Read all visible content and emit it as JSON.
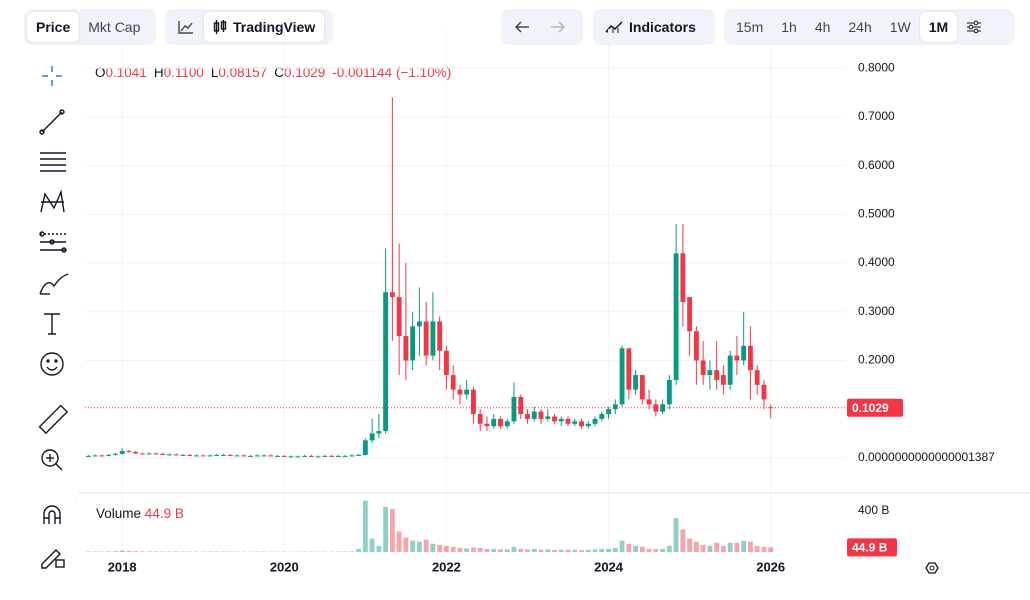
{
  "toolbar": {
    "view_tabs": [
      "Price",
      "Mkt Cap"
    ],
    "chart_style": "TradingView",
    "indicators": "Indicators",
    "intervals": [
      "15m",
      "1h",
      "4h",
      "24h",
      "1W",
      "1M"
    ],
    "active_interval": "1M"
  },
  "legend": {
    "items": [
      {
        "key": "O",
        "value": "0.1041"
      },
      {
        "key": "H",
        "value": "0.1100"
      },
      {
        "key": "L",
        "value": "0.08157"
      },
      {
        "key": "C",
        "value": "0.1029"
      }
    ],
    "change": "-0.001144",
    "change_pct": "(−1.10%)"
  },
  "chart_data": {
    "type": "candlestick",
    "open": [
      0.003,
      0.004,
      0.005,
      0.004,
      0.006,
      0.008,
      0.014,
      0.012,
      0.009,
      0.008,
      0.009,
      0.008,
      0.007,
      0.007,
      0.006,
      0.006,
      0.005,
      0.005,
      0.004,
      0.005,
      0.006,
      0.006,
      0.005,
      0.005,
      0.004,
      0.004,
      0.005,
      0.005,
      0.004,
      0.004,
      0.003,
      0.003,
      0.003,
      0.004,
      0.003,
      0.003,
      0.004,
      0.003,
      0.004,
      0.004,
      0.005,
      0.006,
      0.036,
      0.05,
      0.055,
      0.34,
      0.33,
      0.25,
      0.2,
      0.27,
      0.28,
      0.21,
      0.28,
      0.22,
      0.17,
      0.14,
      0.13,
      0.14,
      0.09,
      0.07,
      0.065,
      0.08,
      0.065,
      0.075,
      0.125,
      0.09,
      0.08,
      0.095,
      0.08,
      0.085,
      0.075,
      0.08,
      0.07,
      0.075,
      0.065,
      0.07,
      0.08,
      0.09,
      0.1,
      0.11,
      0.225,
      0.14,
      0.17,
      0.12,
      0.11,
      0.095,
      0.11,
      0.16,
      0.42,
      0.33,
      0.26,
      0.2,
      0.17,
      0.18,
      0.17,
      0.15,
      0.21,
      0.2,
      0.23,
      0.18,
      0.15,
      0.1041
    ],
    "high": [
      0.006,
      0.007,
      0.007,
      0.008,
      0.01,
      0.02,
      0.016,
      0.014,
      0.011,
      0.011,
      0.011,
      0.01,
      0.009,
      0.009,
      0.008,
      0.008,
      0.007,
      0.007,
      0.007,
      0.008,
      0.008,
      0.008,
      0.007,
      0.007,
      0.006,
      0.007,
      0.007,
      0.007,
      0.006,
      0.006,
      0.005,
      0.005,
      0.006,
      0.006,
      0.005,
      0.006,
      0.006,
      0.006,
      0.006,
      0.007,
      0.008,
      0.04,
      0.08,
      0.09,
      0.43,
      0.74,
      0.44,
      0.4,
      0.3,
      0.35,
      0.32,
      0.34,
      0.29,
      0.23,
      0.19,
      0.15,
      0.16,
      0.145,
      0.1,
      0.085,
      0.09,
      0.085,
      0.08,
      0.155,
      0.13,
      0.1,
      0.105,
      0.1,
      0.1,
      0.09,
      0.085,
      0.085,
      0.08,
      0.08,
      0.075,
      0.085,
      0.095,
      0.105,
      0.12,
      0.23,
      0.22,
      0.18,
      0.165,
      0.14,
      0.12,
      0.12,
      0.17,
      0.48,
      0.48,
      0.33,
      0.27,
      0.24,
      0.2,
      0.24,
      0.19,
      0.22,
      0.25,
      0.3,
      0.27,
      0.19,
      0.16,
      0.11
    ],
    "low": [
      0.002,
      0.003,
      0.003,
      0.003,
      0.005,
      0.007,
      0.011,
      0.008,
      0.007,
      0.007,
      0.007,
      0.006,
      0.006,
      0.005,
      0.005,
      0.004,
      0.004,
      0.003,
      0.003,
      0.004,
      0.005,
      0.004,
      0.004,
      0.003,
      0.003,
      0.003,
      0.004,
      0.003,
      0.003,
      0.002,
      0.002,
      0.002,
      0.002,
      0.002,
      0.002,
      0.002,
      0.002,
      0.002,
      0.003,
      0.003,
      0.004,
      0.005,
      0.03,
      0.04,
      0.05,
      0.24,
      0.17,
      0.16,
      0.18,
      0.21,
      0.19,
      0.2,
      0.18,
      0.14,
      0.12,
      0.11,
      0.12,
      0.07,
      0.055,
      0.055,
      0.06,
      0.06,
      0.06,
      0.07,
      0.08,
      0.07,
      0.075,
      0.07,
      0.075,
      0.07,
      0.065,
      0.065,
      0.065,
      0.06,
      0.06,
      0.065,
      0.075,
      0.08,
      0.09,
      0.105,
      0.12,
      0.13,
      0.11,
      0.1,
      0.085,
      0.09,
      0.1,
      0.15,
      0.27,
      0.21,
      0.15,
      0.15,
      0.14,
      0.14,
      0.13,
      0.14,
      0.17,
      0.19,
      0.12,
      0.13,
      0.1,
      0.08157
    ],
    "close": [
      0.004,
      0.005,
      0.004,
      0.006,
      0.008,
      0.014,
      0.012,
      0.009,
      0.008,
      0.009,
      0.008,
      0.007,
      0.007,
      0.006,
      0.006,
      0.005,
      0.005,
      0.004,
      0.005,
      0.006,
      0.006,
      0.005,
      0.005,
      0.004,
      0.004,
      0.005,
      0.005,
      0.004,
      0.004,
      0.003,
      0.003,
      0.003,
      0.004,
      0.003,
      0.003,
      0.004,
      0.003,
      0.004,
      0.004,
      0.005,
      0.006,
      0.036,
      0.05,
      0.055,
      0.34,
      0.33,
      0.25,
      0.2,
      0.27,
      0.28,
      0.21,
      0.28,
      0.22,
      0.17,
      0.14,
      0.13,
      0.14,
      0.09,
      0.07,
      0.065,
      0.08,
      0.065,
      0.075,
      0.125,
      0.09,
      0.08,
      0.095,
      0.08,
      0.085,
      0.075,
      0.08,
      0.07,
      0.075,
      0.065,
      0.07,
      0.08,
      0.09,
      0.1,
      0.11,
      0.225,
      0.14,
      0.17,
      0.12,
      0.11,
      0.095,
      0.11,
      0.16,
      0.42,
      0.32,
      0.26,
      0.2,
      0.17,
      0.18,
      0.16,
      0.15,
      0.21,
      0.2,
      0.23,
      0.18,
      0.15,
      0.12,
      0.1029
    ],
    "volume": [
      4,
      5,
      4,
      6,
      8,
      14,
      10,
      8,
      7,
      6,
      6,
      5,
      5,
      5,
      4,
      4,
      4,
      4,
      5,
      5,
      4,
      4,
      4,
      3,
      3,
      4,
      4,
      3,
      3,
      3,
      3,
      3,
      4,
      3,
      3,
      4,
      3,
      4,
      4,
      6,
      30,
      500,
      130,
      60,
      440,
      420,
      200,
      140,
      110,
      100,
      120,
      80,
      70,
      60,
      50,
      40,
      35,
      45,
      40,
      30,
      30,
      25,
      25,
      50,
      30,
      25,
      30,
      22,
      25,
      20,
      22,
      20,
      22,
      18,
      20,
      25,
      30,
      30,
      40,
      110,
      80,
      60,
      50,
      30,
      30,
      30,
      60,
      330,
      220,
      130,
      100,
      70,
      60,
      90,
      60,
      90,
      90,
      110,
      100,
      60,
      50,
      44.9
    ],
    "up_color": "#089981",
    "down_color": "#f23645",
    "xlim": [
      -0.5,
      112
    ],
    "xticks": [
      {
        "value": 5,
        "label": "2018"
      },
      {
        "value": 29,
        "label": "2020"
      },
      {
        "value": 53,
        "label": "2022"
      },
      {
        "value": 77,
        "label": "2024"
      },
      {
        "value": 101,
        "label": "2026"
      }
    ],
    "ylim": [
      -0.066,
      0.86
    ],
    "yticks": [
      {
        "value": 0,
        "label": "0.0000000000000001387"
      },
      {
        "value": 0.2,
        "label": "0.2000"
      },
      {
        "value": 0.3,
        "label": "0.3000"
      },
      {
        "value": 0.4,
        "label": "0.4000"
      },
      {
        "value": 0.5,
        "label": "0.5000"
      },
      {
        "value": 0.6,
        "label": "0.6000"
      },
      {
        "value": 0.7,
        "label": "0.7000"
      },
      {
        "value": 0.8,
        "label": "0.8000"
      }
    ],
    "last_price": 0.1029,
    "volume_title": "Volume",
    "volume_last_label": "44.9 B",
    "vlim": [
      0,
      536
    ],
    "vticks": [
      {
        "value": 400,
        "label": "400 B"
      }
    ],
    "grid": true
  }
}
